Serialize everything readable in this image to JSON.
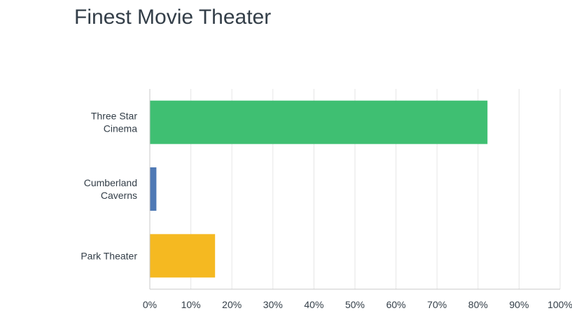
{
  "chart_data": {
    "type": "bar",
    "orientation": "horizontal",
    "title": "Finest Movie Theater",
    "categories": [
      [
        "Three Star",
        "Cinema"
      ],
      [
        "Cumberland",
        "Caverns"
      ],
      [
        "Park Theater"
      ]
    ],
    "values": [
      82.3,
      1.6,
      15.9
    ],
    "colors": [
      "#3fbf72",
      "#4f79b5",
      "#f5b921"
    ],
    "xlim": [
      0,
      100
    ],
    "xticks": [
      "0%",
      "10%",
      "20%",
      "30%",
      "40%",
      "50%",
      "60%",
      "70%",
      "80%",
      "90%",
      "100%"
    ],
    "grid": true
  }
}
